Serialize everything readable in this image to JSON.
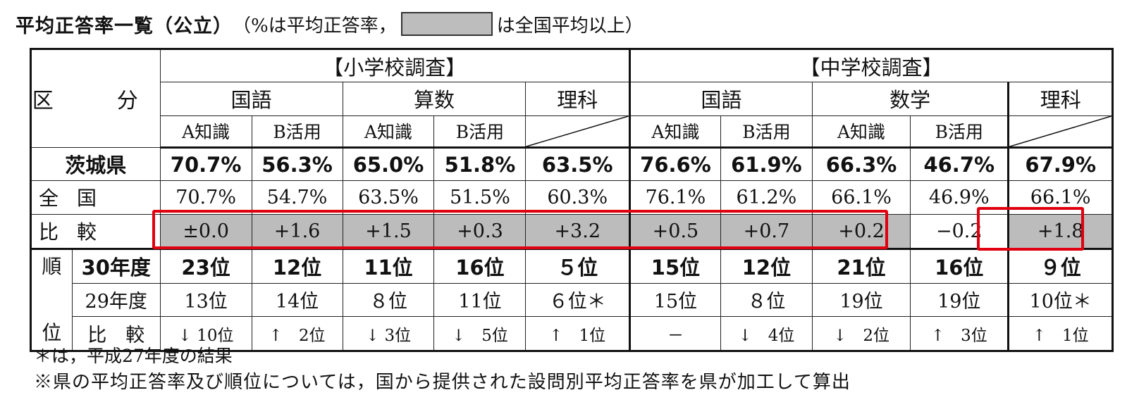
{
  "title": {
    "main": "平均正答率一覧（公立）",
    "paren_open": "（%は平均正答率，",
    "paren_close": "は全国平均以上）"
  },
  "header": {
    "kubun": "区　分",
    "elementary": "【小学校調査】",
    "junior": "【中学校調査】",
    "subjects": [
      "国語",
      "算数",
      "理科",
      "国語",
      "数学",
      "理科"
    ],
    "subsubjects": [
      "A知識",
      "B活用",
      "A知識",
      "B活用",
      "A知識",
      "B活用",
      "A知識",
      "B活用"
    ]
  },
  "rows": {
    "ibaraki": {
      "label": "茨城県",
      "values": [
        "70.7%",
        "56.3%",
        "65.0%",
        "51.8%",
        "63.5%",
        "76.6%",
        "61.9%",
        "66.3%",
        "46.7%",
        "67.9%"
      ]
    },
    "national": {
      "label": "全国",
      "values": [
        "70.7%",
        "54.7%",
        "63.5%",
        "51.5%",
        "60.3%",
        "76.1%",
        "61.2%",
        "66.1%",
        "46.9%",
        "66.1%"
      ]
    },
    "compare": {
      "label": "比較",
      "values": [
        "±0.0",
        "+1.6",
        "+1.5",
        "+0.3",
        "+3.2",
        "+0.5",
        "+0.7",
        "+0.2",
        "−0.2",
        "+1.8"
      ],
      "above_national": [
        true,
        true,
        true,
        true,
        true,
        true,
        true,
        true,
        false,
        true
      ]
    },
    "rank_label_chars": [
      "順",
      "位"
    ],
    "rank_2018": {
      "label": "30年度",
      "values": [
        "23位",
        "12位",
        "11位",
        "16位",
        "５位",
        "15位",
        "12位",
        "21位",
        "16位",
        "９位"
      ]
    },
    "rank_2017": {
      "label": "29年度",
      "values": [
        "13位",
        "14位",
        "８位",
        "11位",
        "６位＊",
        "15位",
        "８位",
        "19位",
        "19位",
        "10位＊"
      ]
    },
    "rank_diff": {
      "label": "比　較",
      "values": [
        "↓ 10位",
        "↑　2位",
        "↓ 3位",
        "↓　5位",
        "↑　1位",
        "－",
        "↓　4位",
        "↓　2位",
        "↑　3位",
        "↑　1位"
      ]
    }
  },
  "notes": {
    "note1": "＊は，平成27年度の結果",
    "note2": "※県の平均正答率及び順位については，国から提供された設問別平均正答率を県が加工して算出"
  },
  "colors": {
    "gray_fill": "#bcbcbc",
    "highlight": "#e0000f"
  }
}
